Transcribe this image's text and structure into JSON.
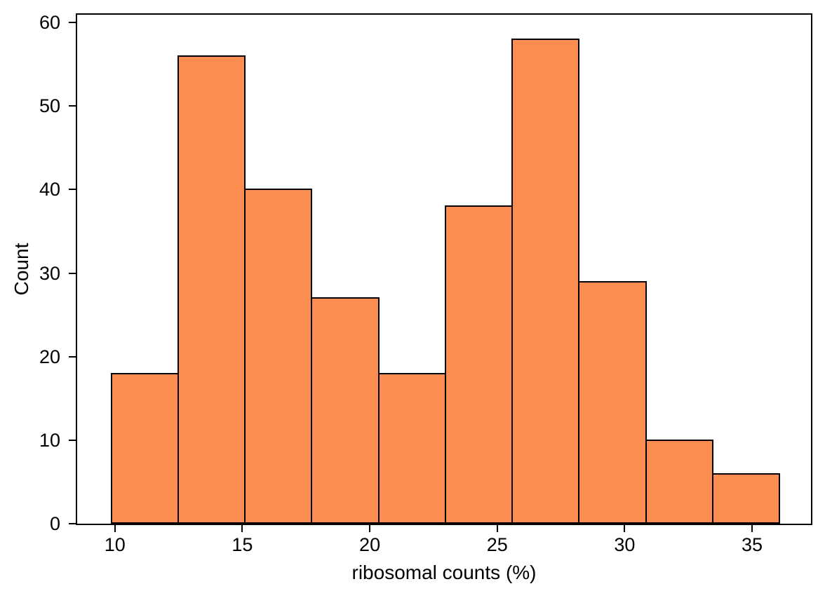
{
  "figure": {
    "background_color": "#ffffff",
    "text_color": "#000000"
  },
  "chart_data": {
    "type": "bar",
    "subtype": "histogram",
    "title": "",
    "xlabel": "ribosomal counts (%)",
    "ylabel": "Count",
    "bin_edges": [
      9.86,
      12.48,
      15.1,
      17.72,
      20.35,
      22.97,
      25.59,
      28.21,
      30.83,
      33.45,
      36.07
    ],
    "counts": [
      18,
      56,
      40,
      27,
      18,
      38,
      58,
      29,
      10,
      6
    ],
    "x_ticks": [
      10,
      15,
      20,
      25,
      30,
      35
    ],
    "y_ticks": [
      0,
      10,
      20,
      30,
      40,
      50,
      60
    ],
    "xlim": [
      8.52,
      37.31
    ],
    "ylim": [
      0,
      60.94
    ],
    "bar_fill_color": "#fc8d50",
    "bar_edge_color": "#000000",
    "axis_color": "#000000",
    "grid": false,
    "legend_position": "none"
  }
}
